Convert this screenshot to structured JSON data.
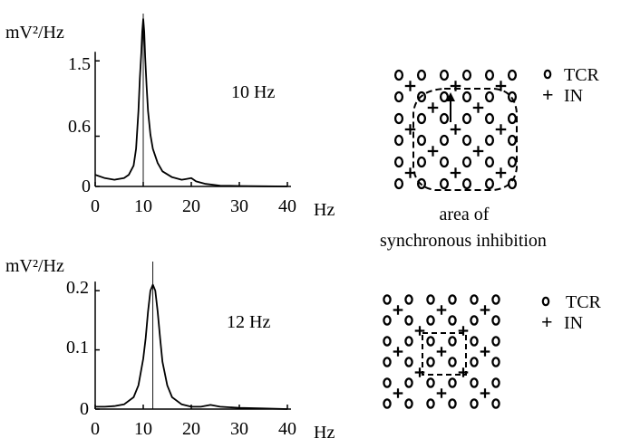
{
  "chart_data": [
    {
      "type": "line",
      "title": "",
      "ylabel": "mV²/Hz",
      "xlabel": "Hz",
      "xlim": [
        0,
        40
      ],
      "ylim": [
        0,
        2.0
      ],
      "xticks": [
        "0",
        "10",
        "20",
        "30",
        "40"
      ],
      "yticks": [
        {
          "label": "0",
          "value": 0
        },
        {
          "label": "0.6",
          "value": 0.6
        },
        {
          "label": "1.5",
          "value": 1.5
        }
      ],
      "annotation": "10 Hz",
      "peak_marker_x": 10,
      "grid": false,
      "x": [
        0,
        2,
        4,
        6,
        7,
        8,
        8.5,
        9,
        9.3,
        9.6,
        9.8,
        10,
        10.2,
        10.4,
        10.7,
        11,
        11.5,
        12,
        13,
        14,
        16,
        18,
        19,
        20,
        21,
        23,
        26,
        30,
        35,
        40
      ],
      "y": [
        0.14,
        0.1,
        0.08,
        0.1,
        0.14,
        0.25,
        0.45,
        0.9,
        1.3,
        1.6,
        1.85,
        2.0,
        1.85,
        1.55,
        1.2,
        0.9,
        0.62,
        0.45,
        0.28,
        0.18,
        0.11,
        0.08,
        0.09,
        0.1,
        0.06,
        0.03,
        0.01,
        0.005,
        0.002,
        0.0
      ]
    },
    {
      "type": "line",
      "title": "",
      "ylabel": "mV²/Hz",
      "xlabel": "Hz",
      "xlim": [
        0,
        40
      ],
      "ylim": [
        0,
        0.24
      ],
      "xticks": [
        "0",
        "10",
        "20",
        "30",
        "40"
      ],
      "yticks": [
        {
          "label": "0",
          "value": 0
        },
        {
          "label": "0.1",
          "value": 0.1
        },
        {
          "label": "0.2",
          "value": 0.2
        }
      ],
      "annotation": "12 Hz",
      "peak_marker_x": 12,
      "grid": false,
      "x": [
        0,
        2,
        4,
        6,
        8,
        9,
        10,
        10.5,
        11,
        11.5,
        12,
        12.5,
        13,
        13.5,
        14,
        15,
        16,
        18,
        20,
        22,
        24,
        26,
        30,
        35,
        40
      ],
      "y": [
        0.004,
        0.004,
        0.005,
        0.008,
        0.02,
        0.04,
        0.085,
        0.12,
        0.165,
        0.2,
        0.21,
        0.2,
        0.165,
        0.12,
        0.08,
        0.04,
        0.02,
        0.008,
        0.004,
        0.004,
        0.007,
        0.004,
        0.002,
        0.001,
        0.0
      ]
    }
  ],
  "diagrams": [
    {
      "legend": {
        "tcr_label": "TCR",
        "in_label": "IN"
      },
      "caption_line1": "area of",
      "caption_line2": "synchronous inhibition"
    },
    {
      "legend": {
        "tcr_label": "TCR",
        "in_label": "IN"
      }
    }
  ]
}
